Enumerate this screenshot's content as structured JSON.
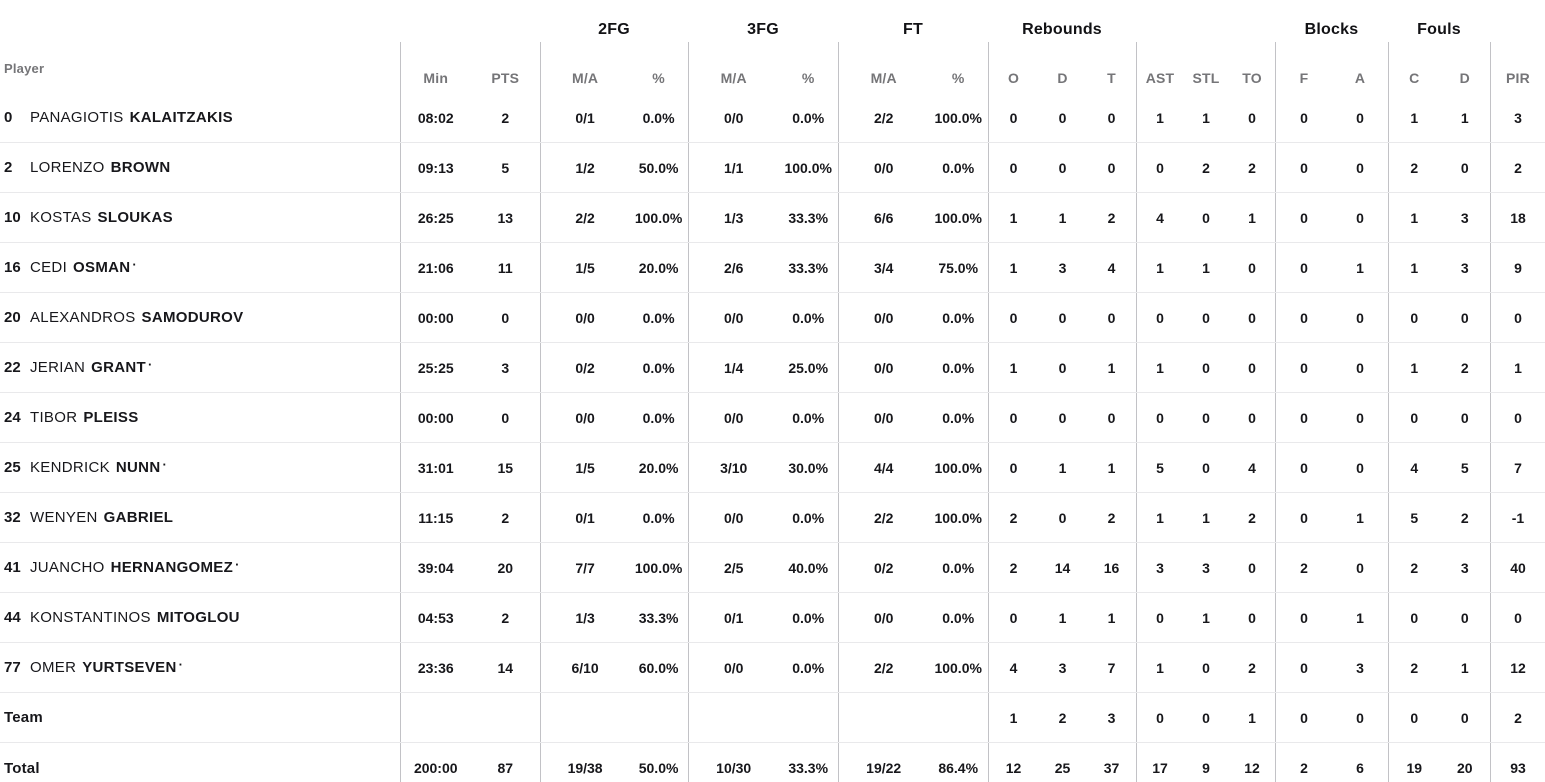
{
  "colors": {
    "text": "#17171b",
    "muted_header": "#757578",
    "row_divider": "#e9e9eb",
    "column_divider": "#c2c2c6",
    "background": "#ffffff"
  },
  "table": {
    "player_col_label": "Player",
    "starter_mark": "·",
    "groups": [
      {
        "label": "",
        "cols": [
          "Min",
          "PTS"
        ]
      },
      {
        "label": "2FG",
        "cols": [
          "M/A",
          "%"
        ]
      },
      {
        "label": "3FG",
        "cols": [
          "M/A",
          "%"
        ]
      },
      {
        "label": "FT",
        "cols": [
          "M/A",
          "%"
        ]
      },
      {
        "label": "Rebounds",
        "cols": [
          "O",
          "D",
          "T"
        ]
      },
      {
        "label": "",
        "cols": [
          "AST",
          "STL",
          "TO"
        ]
      },
      {
        "label": "Blocks",
        "cols": [
          "F",
          "A"
        ]
      },
      {
        "label": "Fouls",
        "cols": [
          "C",
          "D"
        ]
      },
      {
        "label": "",
        "cols": [
          "PIR"
        ]
      }
    ],
    "rows": [
      {
        "number": "0",
        "first": "PANAGIOTIS",
        "last": "KALAITZAKIS",
        "starter": false,
        "stats": [
          "08:02",
          "2",
          "0/1",
          "0.0%",
          "0/0",
          "0.0%",
          "2/2",
          "100.0%",
          "0",
          "0",
          "0",
          "1",
          "1",
          "0",
          "0",
          "0",
          "1",
          "1",
          "3"
        ]
      },
      {
        "number": "2",
        "first": "LORENZO",
        "last": "BROWN",
        "starter": false,
        "stats": [
          "09:13",
          "5",
          "1/2",
          "50.0%",
          "1/1",
          "100.0%",
          "0/0",
          "0.0%",
          "0",
          "0",
          "0",
          "0",
          "2",
          "2",
          "0",
          "0",
          "2",
          "0",
          "2"
        ]
      },
      {
        "number": "10",
        "first": "KOSTAS",
        "last": "SLOUKAS",
        "starter": false,
        "stats": [
          "26:25",
          "13",
          "2/2",
          "100.0%",
          "1/3",
          "33.3%",
          "6/6",
          "100.0%",
          "1",
          "1",
          "2",
          "4",
          "0",
          "1",
          "0",
          "0",
          "1",
          "3",
          "18"
        ]
      },
      {
        "number": "16",
        "first": "CEDI",
        "last": "OSMAN",
        "starter": true,
        "stats": [
          "21:06",
          "11",
          "1/5",
          "20.0%",
          "2/6",
          "33.3%",
          "3/4",
          "75.0%",
          "1",
          "3",
          "4",
          "1",
          "1",
          "0",
          "0",
          "1",
          "1",
          "3",
          "9"
        ]
      },
      {
        "number": "20",
        "first": "ALEXANDROS",
        "last": "SAMODUROV",
        "starter": false,
        "stats": [
          "00:00",
          "0",
          "0/0",
          "0.0%",
          "0/0",
          "0.0%",
          "0/0",
          "0.0%",
          "0",
          "0",
          "0",
          "0",
          "0",
          "0",
          "0",
          "0",
          "0",
          "0",
          "0"
        ]
      },
      {
        "number": "22",
        "first": "JERIAN",
        "last": "GRANT",
        "starter": true,
        "stats": [
          "25:25",
          "3",
          "0/2",
          "0.0%",
          "1/4",
          "25.0%",
          "0/0",
          "0.0%",
          "1",
          "0",
          "1",
          "1",
          "0",
          "0",
          "0",
          "0",
          "1",
          "2",
          "1"
        ]
      },
      {
        "number": "24",
        "first": "TIBOR",
        "last": "PLEISS",
        "starter": false,
        "stats": [
          "00:00",
          "0",
          "0/0",
          "0.0%",
          "0/0",
          "0.0%",
          "0/0",
          "0.0%",
          "0",
          "0",
          "0",
          "0",
          "0",
          "0",
          "0",
          "0",
          "0",
          "0",
          "0"
        ]
      },
      {
        "number": "25",
        "first": "KENDRICK",
        "last": "NUNN",
        "starter": true,
        "stats": [
          "31:01",
          "15",
          "1/5",
          "20.0%",
          "3/10",
          "30.0%",
          "4/4",
          "100.0%",
          "0",
          "1",
          "1",
          "5",
          "0",
          "4",
          "0",
          "0",
          "4",
          "5",
          "7"
        ]
      },
      {
        "number": "32",
        "first": "WENYEN",
        "last": "GABRIEL",
        "starter": false,
        "stats": [
          "11:15",
          "2",
          "0/1",
          "0.0%",
          "0/0",
          "0.0%",
          "2/2",
          "100.0%",
          "2",
          "0",
          "2",
          "1",
          "1",
          "2",
          "0",
          "1",
          "5",
          "2",
          "-1"
        ]
      },
      {
        "number": "41",
        "first": "JUANCHO",
        "last": "HERNANGOMEZ",
        "starter": true,
        "stats": [
          "39:04",
          "20",
          "7/7",
          "100.0%",
          "2/5",
          "40.0%",
          "0/2",
          "0.0%",
          "2",
          "14",
          "16",
          "3",
          "3",
          "0",
          "2",
          "0",
          "2",
          "3",
          "40"
        ]
      },
      {
        "number": "44",
        "first": "KONSTANTINOS",
        "last": "MITOGLOU",
        "starter": false,
        "stats": [
          "04:53",
          "2",
          "1/3",
          "33.3%",
          "0/1",
          "0.0%",
          "0/0",
          "0.0%",
          "0",
          "1",
          "1",
          "0",
          "1",
          "0",
          "0",
          "1",
          "0",
          "0",
          "0"
        ]
      },
      {
        "number": "77",
        "first": "OMER",
        "last": "YURTSEVEN",
        "starter": true,
        "stats": [
          "23:36",
          "14",
          "6/10",
          "60.0%",
          "0/0",
          "0.0%",
          "2/2",
          "100.0%",
          "4",
          "3",
          "7",
          "1",
          "0",
          "2",
          "0",
          "3",
          "2",
          "1",
          "12"
        ]
      }
    ],
    "team_row": {
      "label": "Team",
      "stats": [
        "",
        "",
        "",
        "",
        "",
        "",
        "",
        "",
        "1",
        "2",
        "3",
        "0",
        "0",
        "1",
        "0",
        "0",
        "0",
        "0",
        "2"
      ]
    },
    "total_row": {
      "label": "Total",
      "stats": [
        "200:00",
        "87",
        "19/38",
        "50.0%",
        "10/30",
        "33.3%",
        "19/22",
        "86.4%",
        "12",
        "25",
        "37",
        "17",
        "9",
        "12",
        "2",
        "6",
        "19",
        "20",
        "93"
      ]
    }
  }
}
